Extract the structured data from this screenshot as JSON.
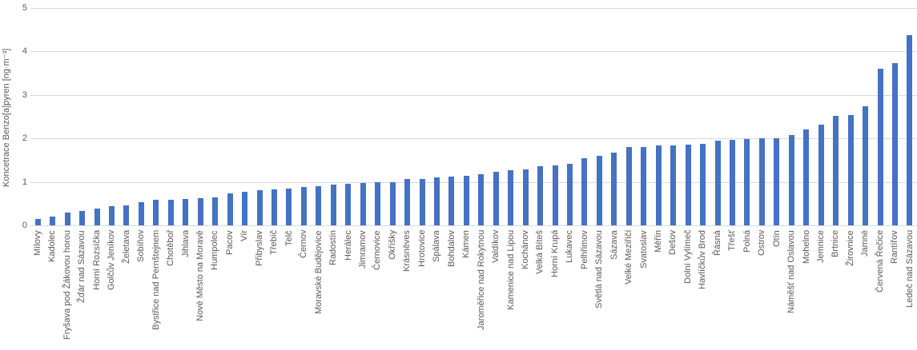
{
  "chart_data": {
    "type": "bar",
    "title": "",
    "xlabel": "",
    "ylabel": "Koncetrace Benzo[a]pyren [ng·m⁻³]",
    "ylim": [
      0,
      5
    ],
    "yticks": [
      0,
      1,
      2,
      3,
      4,
      5
    ],
    "grid": true,
    "legend": false,
    "bar_color": "#4472C4",
    "gridline_color": "#D9D9D9",
    "text_color": "#595959",
    "categories": [
      "Mílovy",
      "Kadolec",
      "Fryšava pod Žákovou horou",
      "Žďár nad Sázavou",
      "Horní Rozsíčka",
      "Golčův Jeníkov",
      "Želetava",
      "Sobíňov",
      "Bystřice nad Pernštejnem",
      "Chotěboř",
      "Jihlava",
      "Nové Město na Moravě",
      "Humpolec",
      "Pacov",
      "Vír",
      "Přibyslav",
      "Třebíč",
      "Telč",
      "Černov",
      "Moravské Budějovice",
      "Radostín",
      "Herálec",
      "Jimramov",
      "Černovice",
      "Okříšky",
      "Krásněves",
      "Hrotovice",
      "Spálava",
      "Bohdalov",
      "Kámen",
      "Jaroměřice nad Rokytnou",
      "Valdíkov",
      "Kamenice nad Lipou",
      "Kochánov",
      "Velká Bíteš",
      "Horní Krupá",
      "Lukavec",
      "Pelhřimov",
      "Světlá nad Sázavou",
      "Sázava",
      "Velké Meziříčí",
      "Svatoslav",
      "Měřín",
      "Dešov",
      "Dolní Vylímeč",
      "Havlíčkův Brod",
      "Řásná",
      "Třešť",
      "Polná",
      "Ostrov",
      "Otín",
      "Náměšť nad Oslavou",
      "Mohelno",
      "Jemnice",
      "Brtnice",
      "Žirovnice",
      "Jamné",
      "Červená Řečice",
      "Rantířov",
      "Ledeč nad Sázavou"
    ],
    "values": [
      0.15,
      0.21,
      0.3,
      0.34,
      0.38,
      0.45,
      0.46,
      0.53,
      0.58,
      0.59,
      0.61,
      0.62,
      0.65,
      0.74,
      0.77,
      0.8,
      0.83,
      0.84,
      0.89,
      0.91,
      0.94,
      0.96,
      0.97,
      0.99,
      1.0,
      1.06,
      1.06,
      1.1,
      1.13,
      1.14,
      1.18,
      1.24,
      1.26,
      1.28,
      1.36,
      1.37,
      1.42,
      1.54,
      1.6,
      1.67,
      1.8,
      1.81,
      1.83,
      1.84,
      1.86,
      1.88,
      1.94,
      1.97,
      1.99,
      2.0,
      2.0,
      2.07,
      2.2,
      2.31,
      2.52,
      2.54,
      2.74,
      3.61,
      3.74,
      4.38
    ]
  }
}
